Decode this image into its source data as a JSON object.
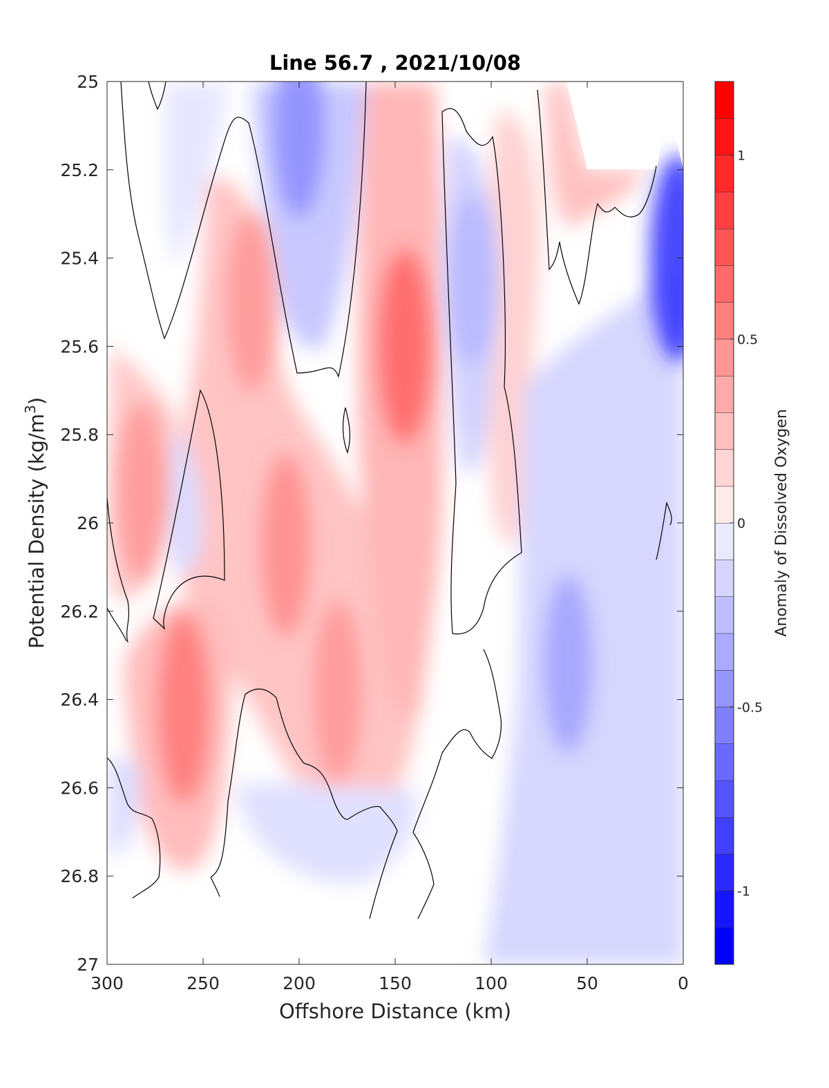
{
  "chart_data": {
    "type": "contour",
    "title": "Line 56.7 , 2021/10/08",
    "xlabel": "Offshore Distance (km)",
    "ylabel": "Potential Density (kg/m",
    "ylabel_sup": "3",
    "ylabel_close": ")",
    "xlim": [
      300,
      0
    ],
    "ylim": [
      25,
      27
    ],
    "x_reversed": true,
    "y_reversed": true,
    "xticks": [
      300,
      250,
      200,
      150,
      100,
      50,
      0
    ],
    "xtick_labels": [
      "300",
      "250",
      "200",
      "150",
      "100",
      "50",
      "0"
    ],
    "yticks": [
      25,
      25.2,
      25.4,
      25.6,
      25.8,
      26,
      26.2,
      26.4,
      26.6,
      26.8,
      27
    ],
    "ytick_labels": [
      "25",
      "25.2",
      "25.4",
      "25.6",
      "25.8",
      "26",
      "26.2",
      "26.4",
      "26.6",
      "26.8",
      "27"
    ],
    "zero_contour": "black line",
    "colorbar": {
      "label": "Anomaly of Dissolved Oxygen",
      "range": [
        -1.2,
        1.2
      ],
      "levels_step": 0.1,
      "ticks": [
        -1,
        -0.5,
        0,
        0.5,
        1
      ],
      "tick_labels": [
        "-1",
        "-0.5",
        "0",
        "0.5",
        "1"
      ],
      "colormap": "blue-white-red",
      "negative_color": "#0000ff",
      "positive_color": "#ff0000",
      "zero_color": "#ffffff"
    },
    "anomaly_features": [
      {
        "x": 200,
        "y": 25.1,
        "value": -0.55
      },
      {
        "x": 145,
        "y": 25.6,
        "value": 0.75
      },
      {
        "x": 110,
        "y": 25.45,
        "value": -0.35
      },
      {
        "x": 282,
        "y": 25.93,
        "value": 0.5
      },
      {
        "x": 260,
        "y": 26.42,
        "value": 0.65
      },
      {
        "x": 225,
        "y": 25.5,
        "value": 0.5
      },
      {
        "x": 207,
        "y": 26.05,
        "value": 0.55
      },
      {
        "x": 180,
        "y": 26.38,
        "value": 0.5
      },
      {
        "x": 60,
        "y": 26.32,
        "value": -0.45
      },
      {
        "x": 3,
        "y": 25.4,
        "value": -1.0
      }
    ]
  }
}
